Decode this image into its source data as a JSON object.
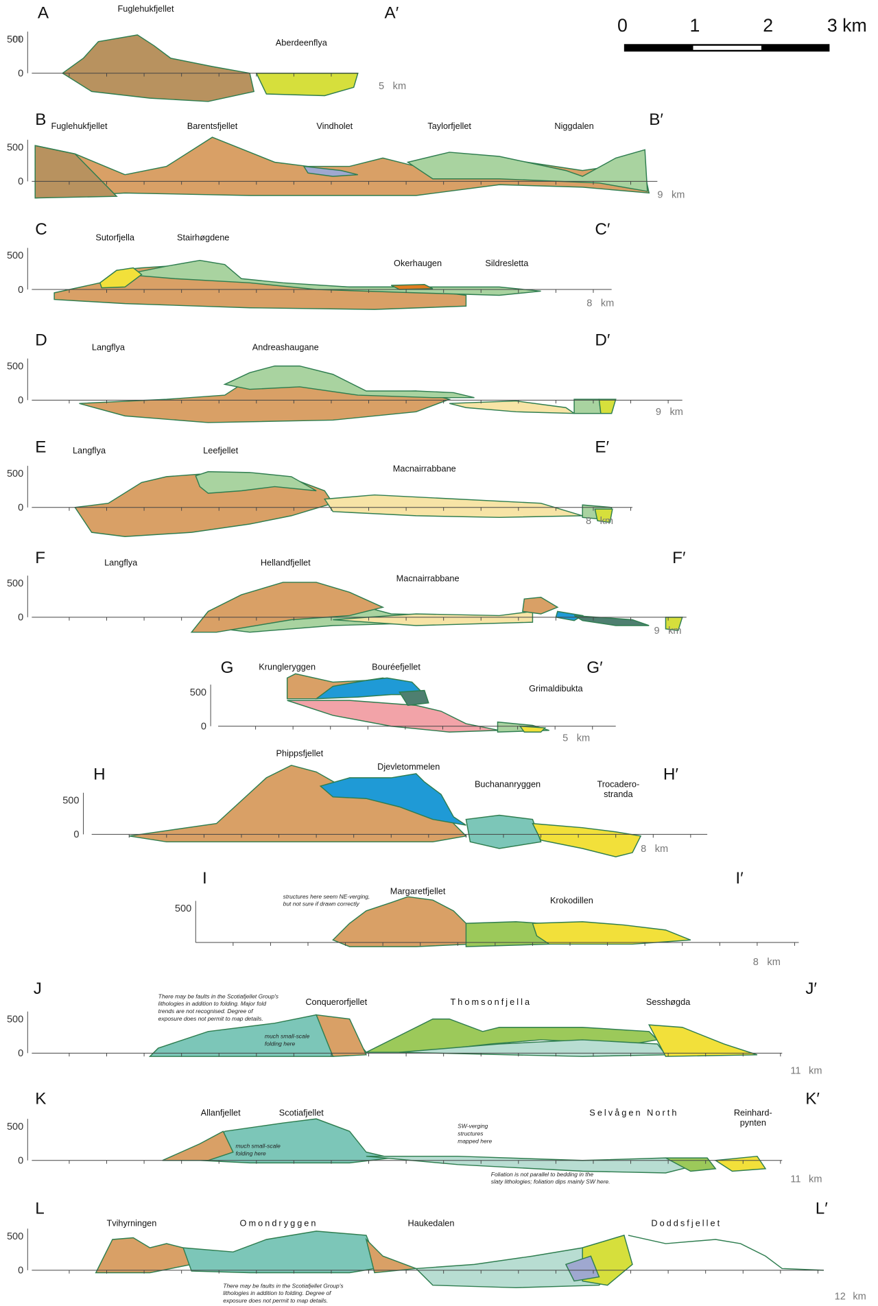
{
  "axis_unit": "m",
  "scale_bar": {
    "labels": [
      "0",
      "1",
      "2",
      "3 km"
    ]
  },
  "sections": [
    {
      "start": "A",
      "end": "A′",
      "places": [
        "Fuglehukfjellet",
        "Aberdeenflya"
      ],
      "y_labels": [
        "500",
        "0"
      ],
      "distance": "5",
      "distance_unit": "km"
    },
    {
      "start": "B",
      "end": "B′",
      "places": [
        "Fuglehukfjellet",
        "Barentsfjellet",
        "Vindholet",
        "Taylorfjellet",
        "Niggdalen"
      ],
      "y_labels": [
        "500",
        "0"
      ],
      "distance": "9",
      "distance_unit": "km"
    },
    {
      "start": "C",
      "end": "C′",
      "places": [
        "Sutorfjella",
        "Stairhøgdene",
        "Okerhaugen",
        "Sildresletta"
      ],
      "y_labels": [
        "500",
        "0"
      ],
      "distance": "8",
      "distance_unit": "km"
    },
    {
      "start": "D",
      "end": "D′",
      "places": [
        "Langflya",
        "Andreashaugane"
      ],
      "y_labels": [
        "500",
        "0"
      ],
      "distance": "9",
      "distance_unit": "km"
    },
    {
      "start": "E",
      "end": "E′",
      "places": [
        "Langflya",
        "Leefjellet",
        "Macnairrabbane"
      ],
      "y_labels": [
        "500",
        "0"
      ],
      "distance": "8",
      "distance_unit": "km"
    },
    {
      "start": "F",
      "end": "F′",
      "places": [
        "Langflya",
        "Hellandfjellet",
        "Macnairrabbane"
      ],
      "y_labels": [
        "500",
        "0"
      ],
      "distance": "9",
      "distance_unit": "km"
    },
    {
      "start": "G",
      "end": "G′",
      "places": [
        "Krungleryggen",
        "Bouréefjellet",
        "Grimaldibukta"
      ],
      "y_labels": [
        "500",
        "0"
      ],
      "distance": "5",
      "distance_unit": "km"
    },
    {
      "start": "H",
      "end": "H′",
      "places": [
        "Phippsfjellet",
        "Djevletommelen",
        "Buchananryggen",
        [
          "Trocadero-",
          "stranda"
        ]
      ],
      "y_labels": [
        "500",
        "0"
      ],
      "distance": "8",
      "distance_unit": "km"
    },
    {
      "start": "I",
      "end": "I′",
      "places": [
        "Margaretfjellet",
        "Krokodillen"
      ],
      "y_labels": [
        "500"
      ],
      "distance": "8",
      "distance_unit": "km",
      "notes": [
        [
          "structures here seem NE-verging,",
          "but not sure if drawn correctly"
        ]
      ]
    },
    {
      "start": "J",
      "end": "J′",
      "places": [
        "Conquerorfjellet",
        "Thomsonfjella",
        "Sesshøgda"
      ],
      "y_labels": [
        "500",
        "0"
      ],
      "distance": "11",
      "distance_unit": "km",
      "notes": [
        [
          "There may be faults in the Scotiafjellet Group's",
          "lithologies in addition to folding. Major fold",
          "trends are not recognised. Degree of",
          "exposure does not permit to map details."
        ],
        [
          "much small-scale",
          "folding here"
        ]
      ]
    },
    {
      "start": "K",
      "end": "K′",
      "places": [
        "Allanfjellet",
        "Scotiafjellet",
        "Selvågen North",
        [
          "Reinhard-",
          "pynten"
        ]
      ],
      "y_labels": [
        "500",
        "0"
      ],
      "distance": "11",
      "distance_unit": "km",
      "notes": [
        [
          "much small-scale",
          "folding here"
        ],
        [
          "SW-verging",
          "structures",
          "mapped here"
        ],
        [
          "Foliation is not parallel to bedding in the",
          "slaty lithologies; foliation dips mainly SW here."
        ]
      ]
    },
    {
      "start": "L",
      "end": "L′",
      "places": [
        "Tvihyrningen",
        "Omondryggen",
        "Haukedalen",
        "Doddsfjellet"
      ],
      "y_labels": [
        "500",
        "0"
      ],
      "distance": "12",
      "distance_unit": "km",
      "notes": [
        [
          "There may be faults in the Scotiafjellet Group's",
          "lithologies in addition to folding. Degree of",
          "exposure does not permit to map details."
        ]
      ]
    }
  ]
}
